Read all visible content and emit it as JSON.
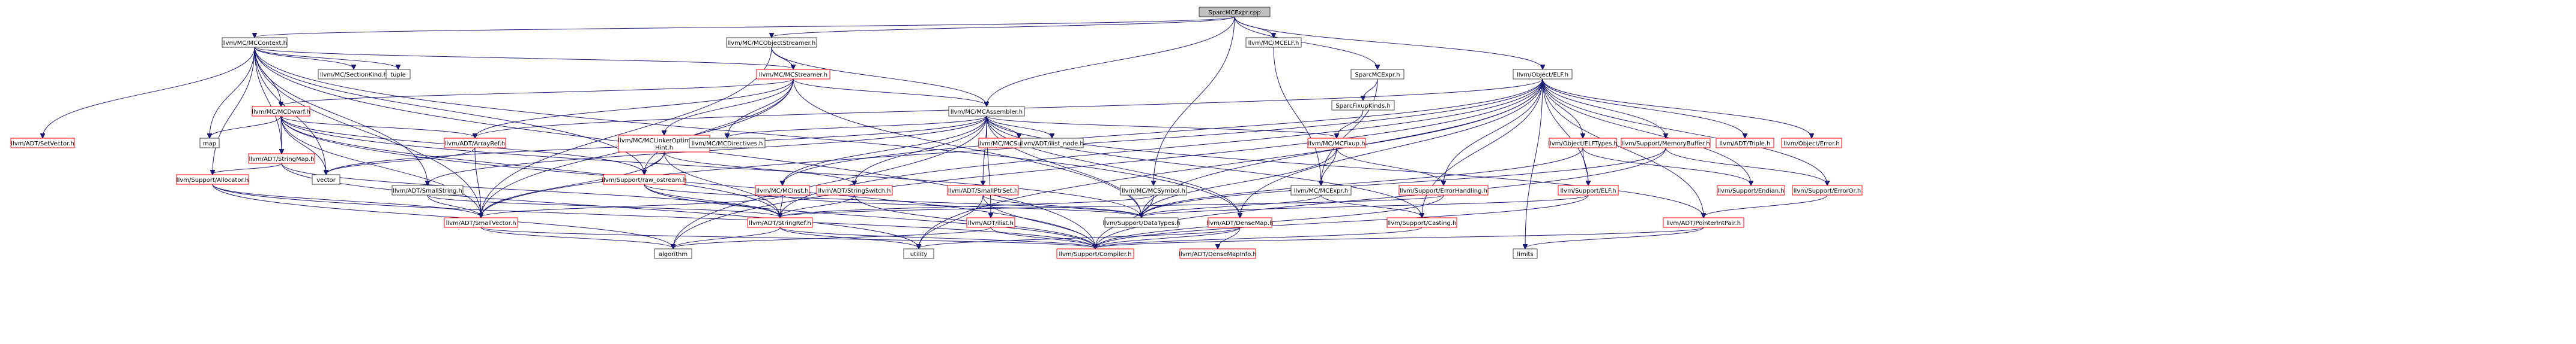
{
  "graph": {
    "nodes": [
      {
        "id": "root",
        "label": "SparcMCExpr.cpp",
        "root": true
      },
      {
        "id": "mccontext",
        "label": "llvm/MC/MCContext.h"
      },
      {
        "id": "objstreamer",
        "label": "llvm/MC/MCObjectStreamer.h"
      },
      {
        "id": "mcelf",
        "label": "llvm/MC/MCELF.h"
      },
      {
        "id": "sparcmcexprh",
        "label": "SparcMCExpr.h"
      },
      {
        "id": "objelf",
        "label": "llvm/Object/ELF.h"
      },
      {
        "id": "setvector",
        "label": "llvm/ADT/SetVector.h",
        "red": true
      },
      {
        "id": "mcdwarf",
        "label": "llvm/MC/MCDwarf.h",
        "red": true
      },
      {
        "id": "sectionkind",
        "label": "llvm/MC/SectionKind.h"
      },
      {
        "id": "tuple",
        "label": "tuple"
      },
      {
        "id": "mcstreamer",
        "label": "llvm/MC/MCStreamer.h",
        "red": true
      },
      {
        "id": "mcassembler",
        "label": "llvm/MC/MCAssembler.h"
      },
      {
        "id": "sparcfixupkinds",
        "label": "SparcFixupKinds.h"
      },
      {
        "id": "map",
        "label": "map"
      },
      {
        "id": "stringmap",
        "label": "llvm/ADT/StringMap.h",
        "red": true
      },
      {
        "id": "arrayref",
        "label": "llvm/ADT/ArrayRef.h",
        "red": true
      },
      {
        "id": "linkeropt",
        "label": "llvm/MC/MCLinkerOptimization\nHint.h",
        "red": true
      },
      {
        "id": "mcdirectives",
        "label": "llvm/MC/MCDirectives.h"
      },
      {
        "id": "subtargetinfo",
        "label": "llvm/MC/MCSubtargetInfo.h",
        "red": true
      },
      {
        "id": "ilistnode",
        "label": "llvm/ADT/ilist_node.h"
      },
      {
        "id": "mcfixup",
        "label": "llvm/MC/MCFixup.h",
        "red": true
      },
      {
        "id": "elftypes",
        "label": "llvm/Object/ELFTypes.h",
        "red": true
      },
      {
        "id": "memorybuffer",
        "label": "llvm/Support/MemoryBuffer.h",
        "red": true
      },
      {
        "id": "triple",
        "label": "llvm/ADT/Triple.h",
        "red": true
      },
      {
        "id": "objerror",
        "label": "llvm/Object/Error.h",
        "red": true
      },
      {
        "id": "allocator",
        "label": "llvm/Support/Allocator.h",
        "red": true
      },
      {
        "id": "vector",
        "label": "vector"
      },
      {
        "id": "smallstring",
        "label": "llvm/ADT/SmallString.h"
      },
      {
        "id": "rawostream",
        "label": "llvm/Support/raw_ostream.h",
        "red": true
      },
      {
        "id": "mcinst",
        "label": "llvm/MC/MCInst.h",
        "red": true
      },
      {
        "id": "stringswitch",
        "label": "llvm/ADT/StringSwitch.h",
        "red": true
      },
      {
        "id": "smallptrset",
        "label": "llvm/ADT/SmallPtrSet.h",
        "red": true
      },
      {
        "id": "mcsymbol",
        "label": "llvm/MC/MCSymbol.h"
      },
      {
        "id": "mcexpr",
        "label": "llvm/MC/MCExpr.h"
      },
      {
        "id": "errorhandling",
        "label": "llvm/Support/ErrorHandling.h",
        "red": true
      },
      {
        "id": "supportelf",
        "label": "llvm/Support/ELF.h",
        "red": true
      },
      {
        "id": "endian",
        "label": "llvm/Support/Endian.h",
        "red": true
      },
      {
        "id": "erroror",
        "label": "llvm/Support/ErrorOr.h",
        "red": true
      },
      {
        "id": "smallvector",
        "label": "llvm/ADT/SmallVector.h",
        "red": true
      },
      {
        "id": "stringref",
        "label": "llvm/ADT/StringRef.h",
        "red": true
      },
      {
        "id": "ilist",
        "label": "llvm/ADT/ilist.h",
        "red": true
      },
      {
        "id": "datatypes",
        "label": "llvm/Support/DataTypes.h"
      },
      {
        "id": "densemap",
        "label": "llvm/ADT/DenseMap.h",
        "red": true
      },
      {
        "id": "casting",
        "label": "llvm/Support/Casting.h",
        "red": true
      },
      {
        "id": "pointerintpair",
        "label": "llvm/ADT/PointerIntPair.h",
        "red": true
      },
      {
        "id": "algorithm",
        "label": "algorithm"
      },
      {
        "id": "utility",
        "label": "utility"
      },
      {
        "id": "compiler",
        "label": "llvm/Support/Compiler.h",
        "red": true
      },
      {
        "id": "densemapinfo",
        "label": "llvm/ADT/DenseMapInfo.h",
        "red": true
      },
      {
        "id": "limits",
        "label": "limits"
      }
    ],
    "edges": [
      [
        "root",
        "mccontext"
      ],
      [
        "root",
        "objstreamer"
      ],
      [
        "root",
        "mcassembler"
      ],
      [
        "root",
        "mcelf"
      ],
      [
        "root",
        "sparcmcexprh"
      ],
      [
        "root",
        "objelf"
      ],
      [
        "root",
        "mcsymbol"
      ],
      [
        "mccontext",
        "setvector"
      ],
      [
        "mccontext",
        "mcdwarf"
      ],
      [
        "mccontext",
        "sectionkind"
      ],
      [
        "mccontext",
        "tuple"
      ],
      [
        "mccontext",
        "mcstreamer"
      ],
      [
        "mccontext",
        "stringmap"
      ],
      [
        "mccontext",
        "map"
      ],
      [
        "mccontext",
        "vector"
      ],
      [
        "mccontext",
        "allocator"
      ],
      [
        "mccontext",
        "rawostream"
      ],
      [
        "mccontext",
        "smallstring"
      ],
      [
        "mccontext",
        "smallvector"
      ],
      [
        "mccontext",
        "densemap"
      ],
      [
        "mccontext",
        "compiler"
      ],
      [
        "objstreamer",
        "mcstreamer"
      ],
      [
        "objstreamer",
        "mcassembler"
      ],
      [
        "objstreamer",
        "smallvector"
      ],
      [
        "mcelf",
        "mcexpr"
      ],
      [
        "sparcmcexprh",
        "sparcfixupkinds"
      ],
      [
        "sparcmcexprh",
        "mcexpr"
      ],
      [
        "objelf",
        "elftypes"
      ],
      [
        "objelf",
        "memorybuffer"
      ],
      [
        "objelf",
        "triple"
      ],
      [
        "objelf",
        "objerror"
      ],
      [
        "objelf",
        "supportelf"
      ],
      [
        "objelf",
        "endian"
      ],
      [
        "objelf",
        "erroror"
      ],
      [
        "objelf",
        "pointerintpair"
      ],
      [
        "objelf",
        "arrayref"
      ],
      [
        "objelf",
        "stringref"
      ],
      [
        "objelf",
        "datatypes"
      ],
      [
        "objelf",
        "casting"
      ],
      [
        "objelf",
        "limits"
      ],
      [
        "objelf",
        "utility"
      ],
      [
        "objelf",
        "algorithm"
      ],
      [
        "objelf",
        "smallvector"
      ],
      [
        "objelf",
        "densemap"
      ],
      [
        "objelf",
        "errorhandling"
      ],
      [
        "objelf",
        "mcinst"
      ],
      [
        "mcdwarf",
        "map"
      ],
      [
        "mcdwarf",
        "stringmap"
      ],
      [
        "mcdwarf",
        "arrayref"
      ],
      [
        "mcdwarf",
        "vector"
      ],
      [
        "mcdwarf",
        "rawostream"
      ],
      [
        "mcdwarf",
        "stringref"
      ],
      [
        "mcdwarf",
        "datatypes"
      ],
      [
        "mcdwarf",
        "compiler"
      ],
      [
        "mcdwarf",
        "smallvector"
      ],
      [
        "mcstreamer",
        "mcdwarf"
      ],
      [
        "mcstreamer",
        "arrayref"
      ],
      [
        "mcstreamer",
        "linkeropt"
      ],
      [
        "mcstreamer",
        "mcdirectives"
      ],
      [
        "mcstreamer",
        "smallvector"
      ],
      [
        "mcstreamer",
        "rawostream"
      ],
      [
        "mcstreamer",
        "datatypes"
      ],
      [
        "mcstreamer",
        "mcassembler"
      ],
      [
        "mcassembler",
        "mcdirectives"
      ],
      [
        "mcassembler",
        "subtargetinfo"
      ],
      [
        "mcassembler",
        "ilistnode"
      ],
      [
        "mcassembler",
        "mcfixup"
      ],
      [
        "mcassembler",
        "vector"
      ],
      [
        "mcassembler",
        "mcinst"
      ],
      [
        "mcassembler",
        "stringswitch"
      ],
      [
        "mcassembler",
        "smallptrset"
      ],
      [
        "mcassembler",
        "ilist"
      ],
      [
        "mcassembler",
        "densemap"
      ],
      [
        "mcassembler",
        "casting"
      ],
      [
        "mcassembler",
        "datatypes"
      ],
      [
        "mcassembler",
        "algorithm"
      ],
      [
        "mcassembler",
        "smallstring"
      ],
      [
        "mcassembler",
        "pointerintpair"
      ],
      [
        "sparcfixupkinds",
        "mcfixup"
      ],
      [
        "stringmap",
        "allocator"
      ],
      [
        "stringmap",
        "stringref"
      ],
      [
        "stringmap",
        "utility"
      ],
      [
        "arrayref",
        "vector"
      ],
      [
        "arrayref",
        "smallvector"
      ],
      [
        "linkeropt",
        "rawostream"
      ],
      [
        "linkeropt",
        "smallvector"
      ],
      [
        "linkeropt",
        "stringswitch"
      ],
      [
        "linkeropt",
        "stringref"
      ],
      [
        "mcfixup",
        "mcexpr"
      ],
      [
        "mcfixup",
        "errorhandling"
      ],
      [
        "mcfixup",
        "datatypes"
      ],
      [
        "elftypes",
        "supportelf"
      ],
      [
        "elftypes",
        "endian"
      ],
      [
        "elftypes",
        "datatypes"
      ],
      [
        "memorybuffer",
        "erroror"
      ],
      [
        "memorybuffer",
        "datatypes"
      ],
      [
        "memorybuffer",
        "compiler"
      ],
      [
        "allocator",
        "smallvector"
      ],
      [
        "allocator",
        "compiler"
      ],
      [
        "allocator",
        "algorithm"
      ],
      [
        "smallstring",
        "smallvector"
      ],
      [
        "smallstring",
        "stringref"
      ],
      [
        "rawostream",
        "stringref"
      ],
      [
        "rawostream",
        "datatypes"
      ],
      [
        "rawostream",
        "compiler"
      ],
      [
        "mcinst",
        "smallvector"
      ],
      [
        "mcinst",
        "stringref"
      ],
      [
        "mcinst",
        "datatypes"
      ],
      [
        "stringswitch",
        "stringref"
      ],
      [
        "stringswitch",
        "compiler"
      ],
      [
        "smallptrset",
        "datatypes"
      ],
      [
        "smallptrset",
        "compiler"
      ],
      [
        "smallptrset",
        "utility"
      ],
      [
        "mcsymbol",
        "stringref"
      ],
      [
        "mcsymbol",
        "compiler"
      ],
      [
        "mcexpr",
        "casting"
      ],
      [
        "mcexpr",
        "datatypes"
      ],
      [
        "errorhandling",
        "stringref"
      ],
      [
        "errorhandling",
        "compiler"
      ],
      [
        "supportelf",
        "datatypes"
      ],
      [
        "supportelf",
        "compiler"
      ],
      [
        "erroror",
        "pointerintpair"
      ],
      [
        "smallvector",
        "algorithm"
      ],
      [
        "smallvector",
        "compiler"
      ],
      [
        "stringref",
        "algorithm"
      ],
      [
        "stringref",
        "compiler"
      ],
      [
        "stringref",
        "utility"
      ],
      [
        "ilist",
        "algorithm"
      ],
      [
        "ilist",
        "compiler"
      ],
      [
        "densemap",
        "densemapinfo"
      ],
      [
        "densemap",
        "compiler"
      ],
      [
        "densemap",
        "utility"
      ],
      [
        "casting",
        "compiler"
      ],
      [
        "pointerintpair",
        "compiler"
      ],
      [
        "pointerintpair",
        "limits"
      ]
    ]
  }
}
